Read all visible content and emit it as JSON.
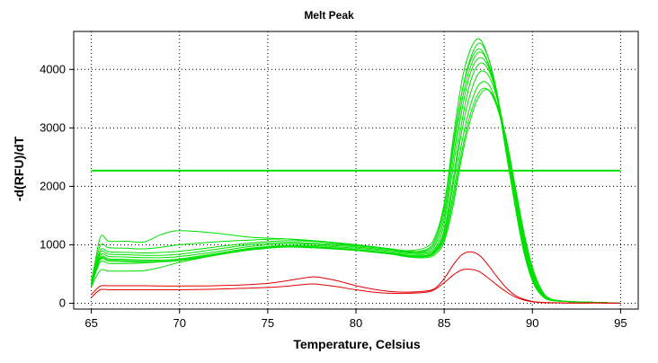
{
  "chart_data": {
    "type": "line",
    "title": "Melt Peak",
    "xlabel": "Temperature, Celsius",
    "ylabel": "-d(RFU)/dT",
    "xlim": [
      64,
      96
    ],
    "ylim": [
      -100,
      4650
    ],
    "xticks": [
      65,
      70,
      75,
      80,
      85,
      90,
      95
    ],
    "yticks": [
      0,
      1000,
      2000,
      3000,
      4000
    ],
    "grid": true,
    "threshold": {
      "value": 2270,
      "x_start": 65,
      "x_end": 95,
      "color": "#00e000"
    },
    "colors": {
      "positive": "#00e000",
      "negative": "#e00000"
    },
    "series": [
      {
        "color": "#00e000",
        "x": [
          65,
          65.5,
          66,
          67,
          68,
          69,
          70,
          72,
          74,
          76,
          78,
          80,
          82,
          83,
          84,
          84.5,
          85,
          85.5,
          86,
          86.5,
          87,
          87.5,
          88,
          88.5,
          89,
          89.5,
          90,
          90.5,
          91,
          92,
          93,
          94,
          95
        ],
        "y": [
          300,
          1120,
          1060,
          1060,
          1050,
          1180,
          1240,
          1200,
          1130,
          1100,
          1050,
          990,
          920,
          900,
          960,
          1150,
          1700,
          2700,
          3600,
          4150,
          4350,
          4100,
          3500,
          2600,
          1700,
          900,
          400,
          150,
          50,
          30,
          20,
          10,
          0
        ]
      },
      {
        "color": "#00e000",
        "x": [
          65,
          65.5,
          66,
          67,
          68,
          69,
          70,
          72,
          74,
          76,
          78,
          80,
          82,
          83,
          84,
          84.5,
          85,
          85.5,
          86,
          86.5,
          87,
          87.5,
          88,
          88.5,
          89,
          89.5,
          90,
          90.5,
          91,
          92,
          93,
          94,
          95
        ],
        "y": [
          400,
          980,
          950,
          940,
          930,
          960,
          1000,
          1050,
          1080,
          1100,
          1060,
          1000,
          920,
          880,
          920,
          1100,
          1650,
          2800,
          3800,
          4350,
          4520,
          4200,
          3550,
          2600,
          1700,
          900,
          380,
          140,
          50,
          30,
          20,
          10,
          0
        ]
      },
      {
        "color": "#00e000",
        "x": [
          65,
          65.5,
          66,
          67,
          68,
          69,
          70,
          72,
          74,
          76,
          78,
          80,
          82,
          83,
          84,
          84.5,
          85,
          85.5,
          86,
          86.5,
          87,
          87.5,
          88,
          88.5,
          89,
          89.5,
          90,
          90.5,
          91,
          92,
          93,
          94,
          95
        ],
        "y": [
          380,
          900,
          880,
          870,
          860,
          870,
          890,
          960,
          1030,
          1070,
          1050,
          1000,
          930,
          890,
          900,
          1050,
          1550,
          2600,
          3600,
          4200,
          4450,
          4200,
          3600,
          2700,
          1800,
          950,
          420,
          160,
          55,
          30,
          20,
          10,
          0
        ]
      },
      {
        "color": "#00e000",
        "x": [
          65,
          65.5,
          66,
          67,
          68,
          69,
          70,
          72,
          74,
          76,
          78,
          80,
          82,
          83,
          84,
          84.5,
          85,
          85.5,
          86,
          86.5,
          87,
          87.5,
          88,
          88.5,
          89,
          89.5,
          90,
          90.5,
          91,
          92,
          93,
          94,
          95
        ],
        "y": [
          360,
          860,
          840,
          830,
          820,
          820,
          840,
          920,
          1000,
          1040,
          1020,
          980,
          920,
          870,
          880,
          1000,
          1450,
          2450,
          3450,
          4050,
          4300,
          4100,
          3550,
          2700,
          1800,
          980,
          450,
          170,
          60,
          30,
          20,
          10,
          0
        ]
      },
      {
        "color": "#00e000",
        "x": [
          65,
          65.5,
          66,
          67,
          68,
          69,
          70,
          72,
          74,
          76,
          78,
          80,
          82,
          83,
          84,
          84.5,
          85,
          85.5,
          86,
          86.5,
          87,
          87.5,
          88,
          88.5,
          89,
          89.5,
          90,
          90.5,
          91,
          92,
          93,
          94,
          95
        ],
        "y": [
          340,
          820,
          800,
          790,
          780,
          780,
          800,
          880,
          970,
          1020,
          1000,
          960,
          900,
          860,
          860,
          950,
          1350,
          2300,
          3300,
          3950,
          4200,
          4050,
          3550,
          2750,
          1850,
          1000,
          470,
          180,
          60,
          30,
          20,
          10,
          0
        ]
      },
      {
        "color": "#00e000",
        "x": [
          65,
          65.5,
          66,
          67,
          68,
          69,
          70,
          72,
          74,
          76,
          78,
          80,
          82,
          83,
          84,
          84.5,
          85,
          85.5,
          86,
          86.5,
          87,
          87.5,
          88,
          88.5,
          89,
          89.5,
          90,
          90.5,
          91,
          92,
          93,
          94,
          95
        ],
        "y": [
          320,
          780,
          760,
          750,
          740,
          740,
          760,
          850,
          940,
          990,
          980,
          940,
          880,
          840,
          840,
          920,
          1250,
          2100,
          3100,
          3800,
          4100,
          4000,
          3550,
          2800,
          1900,
          1050,
          500,
          190,
          65,
          30,
          20,
          10,
          0
        ]
      },
      {
        "color": "#00e000",
        "x": [
          65,
          65.5,
          66,
          67,
          68,
          69,
          70,
          72,
          74,
          76,
          78,
          80,
          82,
          83,
          84,
          84.5,
          85,
          85.5,
          86,
          86.5,
          87,
          87.5,
          88,
          88.5,
          89,
          89.5,
          90,
          90.5,
          91,
          92,
          93,
          94,
          95
        ],
        "y": [
          300,
          760,
          740,
          730,
          720,
          720,
          740,
          830,
          920,
          970,
          960,
          920,
          860,
          820,
          820,
          900,
          1200,
          2000,
          2950,
          3600,
          3950,
          3900,
          3500,
          2800,
          1950,
          1100,
          530,
          200,
          70,
          30,
          20,
          10,
          0
        ]
      },
      {
        "color": "#00e000",
        "x": [
          65,
          65.5,
          66,
          67,
          68,
          69,
          70,
          72,
          74,
          76,
          78,
          80,
          82,
          83,
          84,
          84.5,
          85,
          85.5,
          86,
          86.5,
          87,
          87.5,
          88,
          88.5,
          89,
          89.5,
          90,
          90.5,
          91,
          92,
          93,
          94,
          95
        ],
        "y": [
          290,
          740,
          720,
          710,
          700,
          710,
          730,
          820,
          910,
          960,
          950,
          910,
          850,
          810,
          810,
          880,
          1150,
          1850,
          2750,
          3400,
          3750,
          3750,
          3400,
          2800,
          1980,
          1150,
          560,
          210,
          70,
          30,
          20,
          10,
          0
        ]
      },
      {
        "color": "#00e000",
        "x": [
          65,
          65.5,
          66,
          67,
          68,
          69,
          70,
          72,
          74,
          76,
          78,
          80,
          82,
          83,
          84,
          84.5,
          85,
          85.5,
          86,
          86.5,
          87,
          87.5,
          88,
          88.5,
          89,
          89.5,
          90,
          90.5,
          91,
          92,
          93,
          94,
          95
        ],
        "y": [
          300,
          700,
          680,
          680,
          690,
          710,
          740,
          830,
          920,
          960,
          940,
          900,
          840,
          800,
          800,
          870,
          1100,
          1750,
          2600,
          3250,
          3620,
          3650,
          3350,
          2780,
          2000,
          1200,
          600,
          230,
          75,
          30,
          20,
          10,
          0
        ]
      },
      {
        "color": "#00e000",
        "x": [
          65,
          65.5,
          66,
          67,
          68,
          69,
          70,
          72,
          74,
          76,
          78,
          80,
          82,
          83,
          84,
          84.5,
          85,
          85.5,
          86,
          86.5,
          87,
          87.5,
          88,
          88.5,
          89,
          89.5,
          90,
          90.5,
          91,
          92,
          93,
          94,
          95
        ],
        "y": [
          280,
          560,
          550,
          550,
          560,
          620,
          700,
          820,
          930,
          980,
          960,
          910,
          840,
          790,
          780,
          840,
          1050,
          1650,
          2500,
          3150,
          3550,
          3650,
          3400,
          2850,
          2050,
          1250,
          620,
          240,
          80,
          30,
          20,
          10,
          0
        ]
      },
      {
        "color": "#e00000",
        "x": [
          65,
          65.5,
          66,
          67,
          68,
          69,
          70,
          72,
          74,
          75,
          76,
          77,
          77.5,
          78,
          79,
          80,
          81,
          82,
          83,
          84,
          84.5,
          85,
          85.5,
          86,
          86.5,
          87,
          87.5,
          88,
          88.5,
          89,
          89.5,
          90,
          90.5,
          91,
          92,
          93,
          94,
          95
        ],
        "y": [
          150,
          290,
          300,
          300,
          300,
          295,
          295,
          300,
          320,
          340,
          380,
          430,
          450,
          440,
          380,
          300,
          240,
          200,
          190,
          210,
          260,
          420,
          650,
          830,
          880,
          820,
          650,
          450,
          270,
          140,
          70,
          30,
          15,
          10,
          5,
          5,
          5,
          0
        ]
      },
      {
        "color": "#e00000",
        "x": [
          65,
          65.5,
          66,
          67,
          68,
          69,
          70,
          72,
          74,
          75,
          76,
          77,
          77.5,
          78,
          79,
          80,
          81,
          82,
          83,
          84,
          84.5,
          85,
          85.5,
          86,
          86.5,
          87,
          87.5,
          88,
          88.5,
          89,
          89.5,
          90,
          90.5,
          91,
          92,
          93,
          94,
          95
        ],
        "y": [
          100,
          230,
          230,
          230,
          230,
          230,
          230,
          240,
          260,
          270,
          290,
          320,
          330,
          320,
          280,
          230,
          190,
          170,
          170,
          190,
          240,
          350,
          480,
          570,
          580,
          540,
          430,
          310,
          200,
          110,
          55,
          25,
          12,
          8,
          5,
          5,
          5,
          0
        ]
      }
    ]
  }
}
